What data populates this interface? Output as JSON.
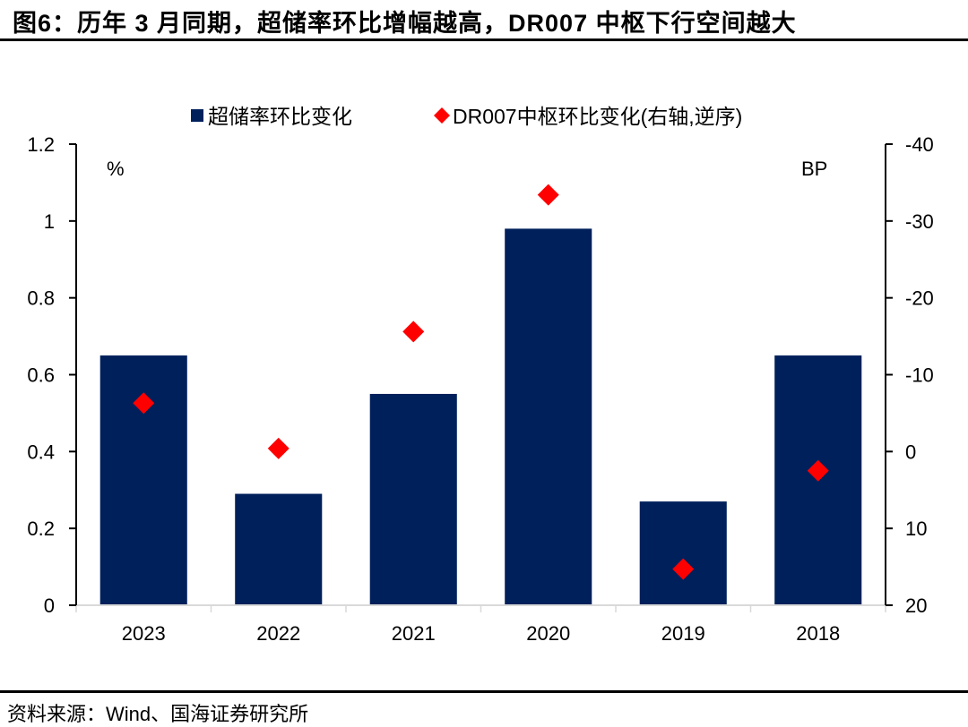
{
  "title": "图6：历年 3 月同期，超储率环比增幅越高，DR007 中枢下行空间越大",
  "source": "资料来源：Wind、国海证券研究所",
  "colors": {
    "bar": "#00205B",
    "marker": "#FF0000",
    "axis": "#000000",
    "baseline": "#D9D9D9"
  },
  "chart_data": {
    "type": "bar",
    "title": "历年 3 月同期，超储率环比增幅越高，DR007 中枢下行空间越大",
    "categories": [
      "2023",
      "2022",
      "2021",
      "2020",
      "2019",
      "2018"
    ],
    "series": [
      {
        "name": "超储率环比变化",
        "type": "bar",
        "axis": "left",
        "values": [
          0.65,
          0.29,
          0.55,
          0.98,
          0.27,
          0.65
        ]
      },
      {
        "name": "DR007中枢环比变化(右轴,逆序)",
        "type": "scatter",
        "marker": "diamond",
        "axis": "right",
        "values": [
          -6.3,
          -0.4,
          -15.6,
          -33.4,
          15.3,
          2.5
        ]
      }
    ],
    "left_axis": {
      "label": "%",
      "ylim": [
        0,
        1.2
      ],
      "ticks": [
        "0",
        "0.2",
        "0.4",
        "0.6",
        "0.8",
        "1",
        "1.2"
      ],
      "tick_values": [
        0,
        0.2,
        0.4,
        0.6,
        0.8,
        1,
        1.2
      ]
    },
    "right_axis": {
      "label": "BP",
      "ylim": [
        -40,
        20
      ],
      "reversed": true,
      "ticks": [
        "-40",
        "-30",
        "-20",
        "-10",
        "0",
        "10",
        "20"
      ],
      "tick_values": [
        -40,
        -30,
        -20,
        -10,
        0,
        10,
        20
      ]
    },
    "legend": {
      "position": "top",
      "entries": [
        "超储率环比变化",
        "DR007中枢环比变化(右轴,逆序)"
      ]
    },
    "grid": false
  }
}
